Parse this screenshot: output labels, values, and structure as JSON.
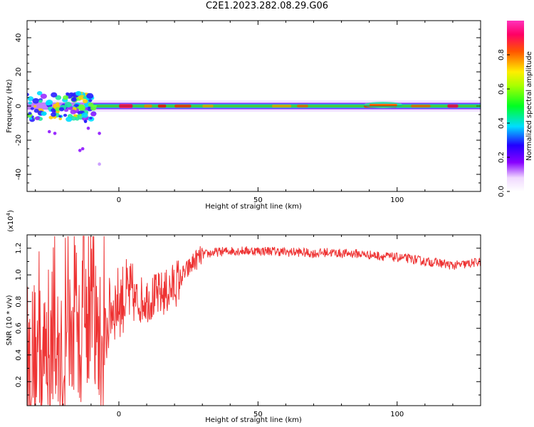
{
  "figure": {
    "title": "C2E1.2023.282.08.29.G06"
  },
  "chart_data": [
    {
      "type": "heatmap",
      "xlabel": "Height of straight line (km)",
      "ylabel": "Frequency (Hz)",
      "xlim": [
        -33,
        130
      ],
      "ylim": [
        -50,
        50
      ],
      "x_ticks": [
        0,
        50,
        100
      ],
      "y_ticks": [
        -40,
        -20,
        0,
        20,
        40
      ],
      "colorbar": {
        "label": "Normalized spectral amplitude",
        "range": [
          0.0,
          1.0
        ],
        "ticks": [
          0.0,
          0.2,
          0.4,
          0.6,
          0.8
        ],
        "tick_labels": [
          "0.0",
          "0.2",
          "0.4",
          "0.6",
          "0.8"
        ],
        "colormap": "rainbow (white → violet → blue → cyan → green → yellow → orange → red → magenta)"
      },
      "band_center_hz": 0,
      "notes": "Spectral energy concentrated near 0 Hz across all heights; broader scatter (±8 Hz, outliers to -26 Hz) below about -10 km."
    },
    {
      "type": "line",
      "xlabel": "Height of straight line (km)",
      "ylabel": "SNR (10 * v/v)",
      "y_multiplier_label": "(x10",
      "y_multiplier_exp": "4",
      "y_multiplier_close": ")",
      "xlim": [
        -33,
        130
      ],
      "ylim": [
        0.02,
        1.3
      ],
      "x_ticks": [
        0,
        50,
        100
      ],
      "y_ticks": [
        0.2,
        0.4,
        0.6,
        0.8,
        1.0,
        1.2
      ],
      "y_tick_labels": [
        "0.2",
        "0.4",
        "0.6",
        "0.8",
        "1.0",
        "1.2"
      ],
      "series": [
        {
          "color": "#ee3333",
          "x": [
            -33,
            -30,
            -27,
            -24,
            -21,
            -18,
            -15,
            -12,
            -9,
            -6,
            -3,
            0,
            3,
            6,
            9,
            12,
            15,
            18,
            21,
            24,
            27,
            30,
            35,
            40,
            45,
            50,
            55,
            60,
            65,
            70,
            75,
            80,
            85,
            90,
            95,
            100,
            105,
            110,
            115,
            120,
            125,
            130
          ],
          "y": [
            0.3,
            0.45,
            0.35,
            0.5,
            0.3,
            0.55,
            0.45,
            0.7,
            0.65,
            0.4,
            0.75,
            0.8,
            0.85,
            0.8,
            0.82,
            0.83,
            0.85,
            0.88,
            0.95,
            1.02,
            1.1,
            1.15,
            1.17,
            1.18,
            1.18,
            1.18,
            1.18,
            1.17,
            1.17,
            1.16,
            1.17,
            1.16,
            1.16,
            1.15,
            1.14,
            1.13,
            1.12,
            1.1,
            1.09,
            1.07,
            1.08,
            1.1
          ]
        }
      ]
    }
  ]
}
